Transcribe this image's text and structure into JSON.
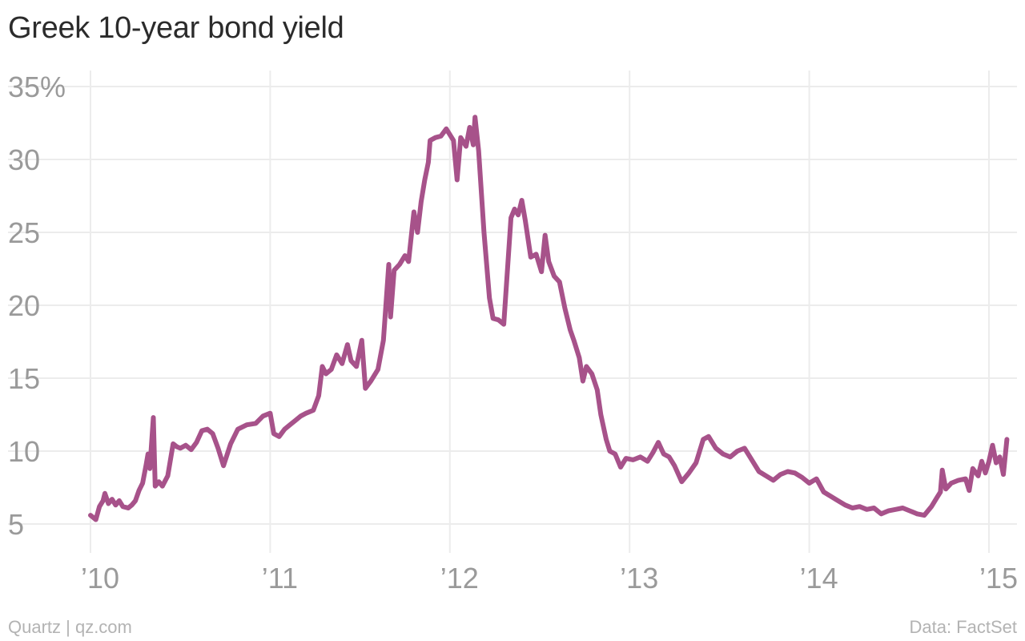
{
  "chart_data": {
    "type": "line",
    "title": "Greek 10-year bond yield",
    "ylim": [
      3,
      37
    ],
    "xlim": [
      2010.0,
      2015.12
    ],
    "grid": true,
    "yticks": [
      {
        "value": 35,
        "label": "35%"
      },
      {
        "value": 30,
        "label": "30"
      },
      {
        "value": 25,
        "label": "25"
      },
      {
        "value": 20,
        "label": "20"
      },
      {
        "value": 15,
        "label": "15"
      },
      {
        "value": 10,
        "label": "10"
      },
      {
        "value": 5,
        "label": "5"
      }
    ],
    "xticks": [
      {
        "value": 2010,
        "label": "’10"
      },
      {
        "value": 2011,
        "label": "’11"
      },
      {
        "value": 2012,
        "label": "’12"
      },
      {
        "value": 2013,
        "label": "’13"
      },
      {
        "value": 2014,
        "label": "’14"
      },
      {
        "value": 2015,
        "label": "’15"
      }
    ],
    "series": [
      {
        "color": "#a7528a",
        "points": [
          [
            2010.0,
            5.6
          ],
          [
            2010.03,
            5.3
          ],
          [
            2010.05,
            6.2
          ],
          [
            2010.07,
            6.6
          ],
          [
            2010.08,
            7.1
          ],
          [
            2010.1,
            6.4
          ],
          [
            2010.12,
            6.7
          ],
          [
            2010.14,
            6.3
          ],
          [
            2010.16,
            6.6
          ],
          [
            2010.18,
            6.2
          ],
          [
            2010.21,
            6.1
          ],
          [
            2010.23,
            6.3
          ],
          [
            2010.25,
            6.6
          ],
          [
            2010.27,
            7.3
          ],
          [
            2010.29,
            7.8
          ],
          [
            2010.31,
            9.1
          ],
          [
            2010.32,
            9.8
          ],
          [
            2010.33,
            8.8
          ],
          [
            2010.35,
            12.3
          ],
          [
            2010.36,
            7.6
          ],
          [
            2010.38,
            7.9
          ],
          [
            2010.4,
            7.6
          ],
          [
            2010.43,
            8.3
          ],
          [
            2010.46,
            10.5
          ],
          [
            2010.48,
            10.3
          ],
          [
            2010.5,
            10.2
          ],
          [
            2010.53,
            10.4
          ],
          [
            2010.56,
            10.1
          ],
          [
            2010.59,
            10.6
          ],
          [
            2010.62,
            11.4
          ],
          [
            2010.65,
            11.5
          ],
          [
            2010.68,
            11.2
          ],
          [
            2010.71,
            10.2
          ],
          [
            2010.74,
            9.0
          ],
          [
            2010.78,
            10.5
          ],
          [
            2010.82,
            11.5
          ],
          [
            2010.87,
            11.8
          ],
          [
            2010.92,
            11.9
          ],
          [
            2010.96,
            12.4
          ],
          [
            2011.0,
            12.6
          ],
          [
            2011.02,
            11.2
          ],
          [
            2011.05,
            11.0
          ],
          [
            2011.08,
            11.5
          ],
          [
            2011.11,
            11.8
          ],
          [
            2011.14,
            12.1
          ],
          [
            2011.17,
            12.4
          ],
          [
            2011.2,
            12.6
          ],
          [
            2011.24,
            12.8
          ],
          [
            2011.27,
            13.8
          ],
          [
            2011.29,
            15.8
          ],
          [
            2011.31,
            15.3
          ],
          [
            2011.34,
            15.6
          ],
          [
            2011.37,
            16.6
          ],
          [
            2011.4,
            16.0
          ],
          [
            2011.43,
            17.3
          ],
          [
            2011.45,
            16.2
          ],
          [
            2011.48,
            15.8
          ],
          [
            2011.51,
            17.6
          ],
          [
            2011.53,
            14.3
          ],
          [
            2011.56,
            14.8
          ],
          [
            2011.6,
            15.6
          ],
          [
            2011.63,
            17.6
          ],
          [
            2011.66,
            22.8
          ],
          [
            2011.67,
            19.2
          ],
          [
            2011.69,
            22.4
          ],
          [
            2011.72,
            22.8
          ],
          [
            2011.75,
            23.4
          ],
          [
            2011.77,
            23.0
          ],
          [
            2011.79,
            25.3
          ],
          [
            2011.8,
            26.4
          ],
          [
            2011.82,
            25.0
          ],
          [
            2011.84,
            27.1
          ],
          [
            2011.86,
            28.6
          ],
          [
            2011.88,
            29.8
          ],
          [
            2011.89,
            31.3
          ],
          [
            2011.92,
            31.5
          ],
          [
            2011.95,
            31.6
          ],
          [
            2011.98,
            32.1
          ],
          [
            2012.02,
            31.3
          ],
          [
            2012.04,
            28.6
          ],
          [
            2012.06,
            31.5
          ],
          [
            2012.09,
            30.9
          ],
          [
            2012.11,
            32.2
          ],
          [
            2012.13,
            31.0
          ],
          [
            2012.14,
            32.9
          ],
          [
            2012.16,
            30.6
          ],
          [
            2012.19,
            25.0
          ],
          [
            2012.22,
            20.5
          ],
          [
            2012.24,
            19.1
          ],
          [
            2012.27,
            19.0
          ],
          [
            2012.3,
            18.7
          ],
          [
            2012.34,
            26.0
          ],
          [
            2012.36,
            26.6
          ],
          [
            2012.38,
            26.2
          ],
          [
            2012.4,
            27.2
          ],
          [
            2012.42,
            25.8
          ],
          [
            2012.45,
            23.3
          ],
          [
            2012.48,
            23.5
          ],
          [
            2012.51,
            22.3
          ],
          [
            2012.53,
            24.8
          ],
          [
            2012.55,
            23.0
          ],
          [
            2012.58,
            22.0
          ],
          [
            2012.61,
            21.6
          ],
          [
            2012.64,
            19.8
          ],
          [
            2012.67,
            18.3
          ],
          [
            2012.69,
            17.6
          ],
          [
            2012.72,
            16.4
          ],
          [
            2012.74,
            14.8
          ],
          [
            2012.76,
            15.8
          ],
          [
            2012.79,
            15.3
          ],
          [
            2012.82,
            14.2
          ],
          [
            2012.84,
            12.5
          ],
          [
            2012.87,
            10.8
          ],
          [
            2012.89,
            10.0
          ],
          [
            2012.92,
            9.8
          ],
          [
            2012.95,
            8.9
          ],
          [
            2012.98,
            9.5
          ],
          [
            2013.02,
            9.4
          ],
          [
            2013.06,
            9.6
          ],
          [
            2013.1,
            9.3
          ],
          [
            2013.13,
            9.9
          ],
          [
            2013.16,
            10.6
          ],
          [
            2013.19,
            9.8
          ],
          [
            2013.22,
            9.6
          ],
          [
            2013.25,
            9.0
          ],
          [
            2013.29,
            7.9
          ],
          [
            2013.33,
            8.5
          ],
          [
            2013.37,
            9.2
          ],
          [
            2013.41,
            10.8
          ],
          [
            2013.44,
            11.0
          ],
          [
            2013.48,
            10.2
          ],
          [
            2013.52,
            9.8
          ],
          [
            2013.56,
            9.6
          ],
          [
            2013.6,
            10.0
          ],
          [
            2013.64,
            10.2
          ],
          [
            2013.68,
            9.4
          ],
          [
            2013.72,
            8.6
          ],
          [
            2013.76,
            8.3
          ],
          [
            2013.8,
            8.0
          ],
          [
            2013.84,
            8.4
          ],
          [
            2013.88,
            8.6
          ],
          [
            2013.92,
            8.5
          ],
          [
            2013.96,
            8.2
          ],
          [
            2014.0,
            7.8
          ],
          [
            2014.04,
            8.1
          ],
          [
            2014.08,
            7.2
          ],
          [
            2014.12,
            6.9
          ],
          [
            2014.16,
            6.6
          ],
          [
            2014.2,
            6.3
          ],
          [
            2014.24,
            6.1
          ],
          [
            2014.28,
            6.2
          ],
          [
            2014.32,
            6.0
          ],
          [
            2014.36,
            6.1
          ],
          [
            2014.4,
            5.7
          ],
          [
            2014.44,
            5.9
          ],
          [
            2014.48,
            6.0
          ],
          [
            2014.52,
            6.1
          ],
          [
            2014.56,
            5.9
          ],
          [
            2014.6,
            5.7
          ],
          [
            2014.64,
            5.6
          ],
          [
            2014.68,
            6.2
          ],
          [
            2014.71,
            6.8
          ],
          [
            2014.73,
            7.2
          ],
          [
            2014.74,
            8.7
          ],
          [
            2014.76,
            7.4
          ],
          [
            2014.79,
            7.8
          ],
          [
            2014.83,
            8.0
          ],
          [
            2014.87,
            8.1
          ],
          [
            2014.89,
            7.3
          ],
          [
            2014.91,
            8.8
          ],
          [
            2014.94,
            8.3
          ],
          [
            2014.96,
            9.3
          ],
          [
            2014.98,
            8.5
          ],
          [
            2015.0,
            9.3
          ],
          [
            2015.02,
            10.4
          ],
          [
            2015.04,
            9.2
          ],
          [
            2015.06,
            9.6
          ],
          [
            2015.08,
            8.4
          ],
          [
            2015.1,
            10.8
          ]
        ]
      }
    ]
  },
  "footer": {
    "source_left": "Quartz | qz.com",
    "source_right": "Data: FactSet"
  }
}
